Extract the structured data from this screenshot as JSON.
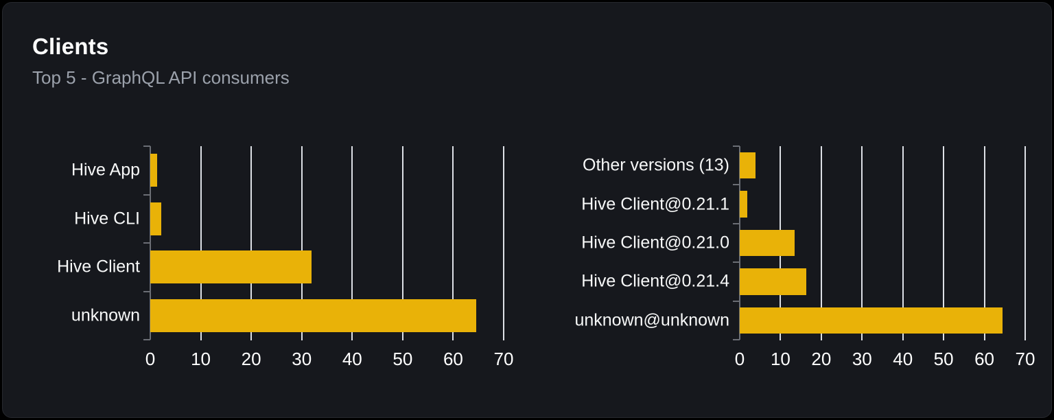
{
  "card": {
    "title": "Clients",
    "subtitle": "Top 5 - GraphQL API consumers"
  },
  "colors": {
    "page_bg": "#000000",
    "card_bg": "#16181d",
    "card_border": "#26282e",
    "bar": "#e9b208",
    "gridline": "#dde0e6",
    "axis": "#6b6e75",
    "title_text": "#ffffff",
    "subtitle_text": "#9ba1ab",
    "label_text": "#f7f8f8"
  },
  "chart_data": [
    {
      "type": "bar",
      "orientation": "horizontal",
      "title": "",
      "categories": [
        "Hive App",
        "Hive CLI",
        "Hive Client",
        "unknown"
      ],
      "values": [
        1.3,
        2.2,
        32,
        64.5
      ],
      "xlim": [
        0,
        70
      ],
      "xticks": [
        0,
        10,
        20,
        30,
        40,
        50,
        60,
        70
      ],
      "grid": true,
      "legend": false,
      "bar_color": "#e9b208"
    },
    {
      "type": "bar",
      "orientation": "horizontal",
      "title": "",
      "categories": [
        "Other versions (13)",
        "Hive Client@0.21.1",
        "Hive Client@0.21.0",
        "Hive Client@0.21.4",
        "unknown@unknown"
      ],
      "values": [
        3.8,
        1.8,
        13.5,
        16.3,
        64.5
      ],
      "xlim": [
        0,
        70
      ],
      "xticks": [
        0,
        10,
        20,
        30,
        40,
        50,
        60,
        70
      ],
      "grid": true,
      "legend": false,
      "bar_color": "#e9b208"
    }
  ]
}
